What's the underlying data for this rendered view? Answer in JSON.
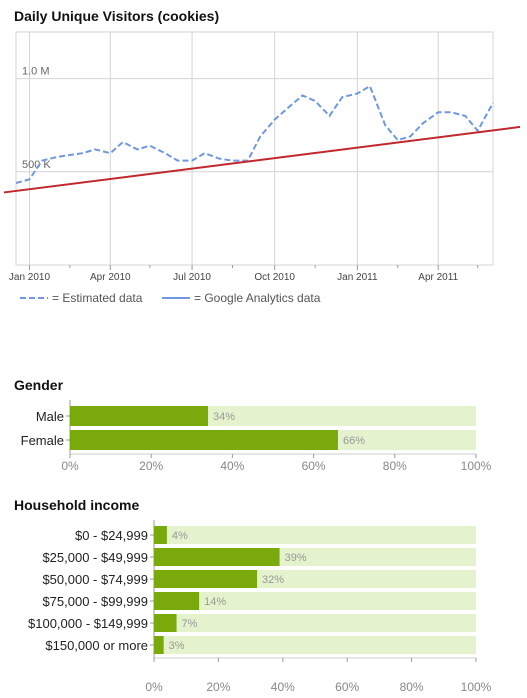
{
  "chart_data": [
    {
      "type": "line",
      "title": "Daily Unique Visitors (cookies)",
      "x_tick_labels": [
        "Jan 2010",
        "Apr 2010",
        "Jul 2010",
        "Oct 2010",
        "Jan 2011",
        "Apr 2011"
      ],
      "y_tick_labels": [
        "1.0 M",
        "500 K"
      ],
      "y_ticks": [
        1000000,
        500000
      ],
      "ylim": [
        0,
        1250000
      ],
      "legend": {
        "estimated": "= Estimated data",
        "analytics": "= Google Analytics data"
      },
      "grid": true,
      "series": [
        {
          "name": "Estimated data",
          "style": "dashed",
          "color": "#6f98e0",
          "x": [
            "2009-12-17",
            "2010-01-01",
            "2010-01-15",
            "2010-02-01",
            "2010-02-15",
            "2010-03-01",
            "2010-03-15",
            "2010-04-01",
            "2010-04-15",
            "2010-05-01",
            "2010-05-15",
            "2010-06-01",
            "2010-06-15",
            "2010-07-01",
            "2010-07-15",
            "2010-08-01",
            "2010-08-15",
            "2010-09-01",
            "2010-09-15",
            "2010-10-01",
            "2010-10-15",
            "2010-11-01",
            "2010-11-15",
            "2010-12-01",
            "2010-12-15",
            "2011-01-01",
            "2011-01-15",
            "2011-02-01",
            "2011-02-15",
            "2011-03-01",
            "2011-03-15",
            "2011-04-01",
            "2011-04-15",
            "2011-05-01",
            "2011-05-15",
            "2011-06-01"
          ],
          "values": [
            440000,
            460000,
            560000,
            580000,
            590000,
            600000,
            620000,
            600000,
            660000,
            620000,
            640000,
            600000,
            560000,
            560000,
            600000,
            570000,
            560000,
            560000,
            690000,
            780000,
            840000,
            910000,
            880000,
            800000,
            900000,
            920000,
            960000,
            750000,
            670000,
            690000,
            760000,
            820000,
            820000,
            800000,
            720000,
            870000
          ]
        }
      ],
      "trend_line": {
        "color": "#c1272d",
        "start": [
          "2009-12-17",
          400000
        ],
        "end": [
          "2011-06-01",
          730000
        ]
      }
    },
    {
      "type": "bar",
      "orientation": "horizontal",
      "title": "Gender",
      "categories": [
        "Male",
        "Female"
      ],
      "values": [
        34,
        66
      ],
      "value_labels": [
        "34%",
        "66%"
      ],
      "x_tick_labels": [
        "0%",
        "20%",
        "40%",
        "60%",
        "80%",
        "100%"
      ],
      "xlim": [
        0,
        100
      ]
    },
    {
      "type": "bar",
      "orientation": "horizontal",
      "title": "Household income",
      "categories": [
        "$0 - $24,999",
        "$25,000 - $49,999",
        "$50,000 - $74,999",
        "$75,000 - $99,999",
        "$100,000 - $149,999",
        "$150,000 or more"
      ],
      "values": [
        4,
        39,
        32,
        14,
        7,
        3
      ],
      "value_labels": [
        "4%",
        "39%",
        "32%",
        "14%",
        "7%",
        "3%"
      ],
      "x_tick_labels": [
        "0%",
        "20%",
        "40%",
        "60%",
        "80%",
        "100%"
      ],
      "xlim": [
        0,
        100
      ]
    }
  ],
  "colors": {
    "bar_fill": "#79a90b",
    "bar_track": "#e4f2cd",
    "line": "#6f98e0",
    "trend": "#c1272d",
    "grid": "#d4d4d4"
  }
}
